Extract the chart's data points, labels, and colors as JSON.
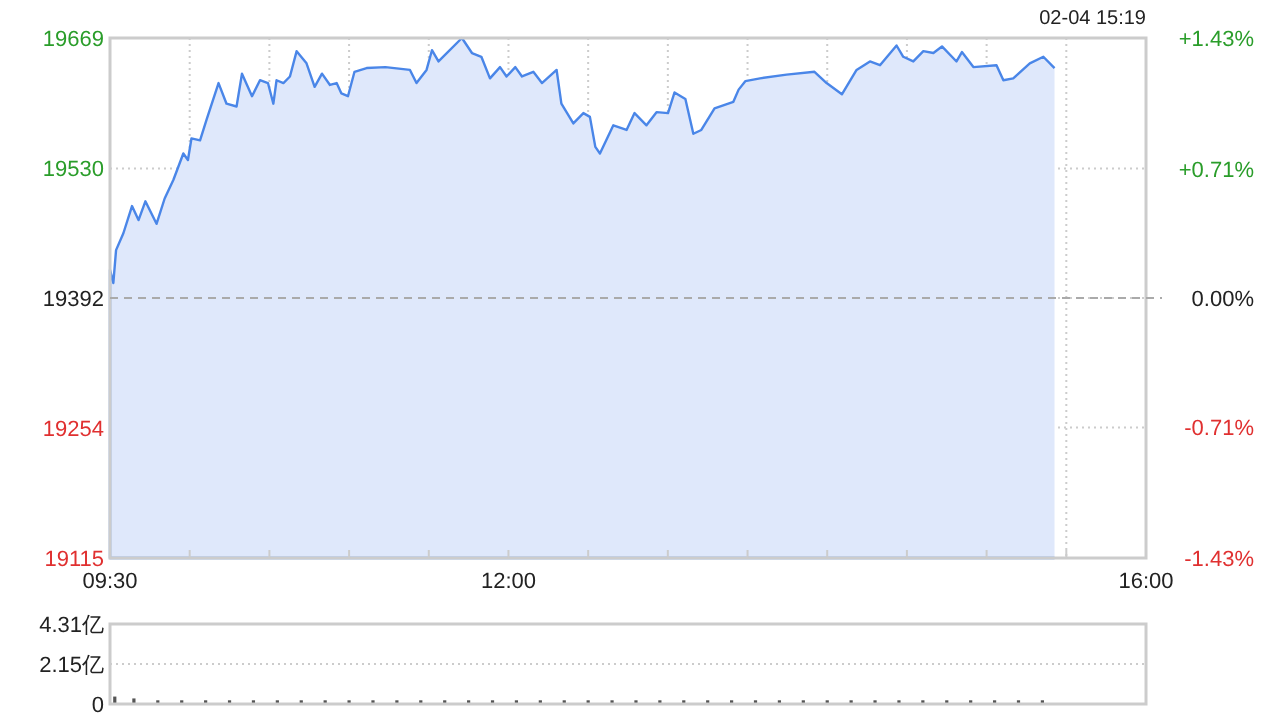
{
  "chart_data": [
    {
      "type": "area",
      "color": "#4a86e8",
      "x": [
        9.5,
        9.521,
        9.538,
        9.584,
        9.638,
        9.679,
        9.722,
        9.792,
        9.843,
        9.898,
        9.96,
        9.989,
        10.011,
        10.065,
        10.106,
        10.181,
        10.231,
        10.294,
        10.328,
        10.391,
        10.441,
        10.491,
        10.525,
        10.545,
        10.588,
        10.629,
        10.671,
        10.733,
        10.784,
        10.83,
        10.88,
        10.922,
        10.952,
        10.993,
        11.034,
        11.11,
        11.228,
        11.382,
        11.423,
        11.486,
        11.52,
        11.561,
        11.708,
        11.771,
        11.83,
        11.884,
        11.947,
        11.988,
        12.043,
        12.085,
        12.156,
        12.21,
        12.302,
        12.332,
        12.407,
        12.47,
        12.511,
        12.545,
        12.574,
        12.658,
        12.741,
        12.791,
        12.866,
        12.929,
        13.001,
        13.042,
        13.11,
        13.16,
        13.21,
        13.293,
        13.411,
        13.444,
        13.486,
        13.578,
        13.745,
        13.92,
        13.996,
        14.092,
        14.184,
        14.268,
        14.331,
        14.435,
        14.477,
        14.54,
        14.603,
        14.666,
        14.72,
        14.811,
        14.845,
        14.917,
        15.062,
        15.105,
        15.167,
        15.271,
        15.356,
        15.426
      ],
      "values": [
        19422,
        19408,
        19443,
        19461,
        19490,
        19475,
        19495,
        19471,
        19498,
        19518,
        19546,
        19539,
        19562,
        19560,
        19582,
        19621,
        19599,
        19596,
        19631,
        19607,
        19624,
        19621,
        19599,
        19624,
        19621,
        19628,
        19655,
        19642,
        19617,
        19631,
        19619,
        19621,
        19610,
        19607,
        19633,
        19637,
        19638,
        19635,
        19621,
        19635,
        19656,
        19644,
        19669,
        19653,
        19649,
        19626,
        19638,
        19628,
        19638,
        19628,
        19633,
        19621,
        19635,
        19599,
        19578,
        19589,
        19585,
        19553,
        19546,
        19576,
        19571,
        19589,
        19576,
        19590,
        19589,
        19611,
        19604,
        19567,
        19571,
        19594,
        19601,
        19614,
        19623,
        19626,
        19630,
        19633,
        19621,
        19609,
        19635,
        19644,
        19640,
        19661,
        19649,
        19644,
        19655,
        19653,
        19660,
        19644,
        19654,
        19638,
        19640,
        19624,
        19626,
        19642,
        19649,
        19637
      ],
      "xlim": [
        9.5,
        16
      ],
      "xticks": [
        {
          "value": 9.5,
          "label": "09:30"
        },
        {
          "value": 10,
          "label": null
        },
        {
          "value": 10.5,
          "label": null
        },
        {
          "value": 11,
          "label": null
        },
        {
          "value": 11.5,
          "label": null
        },
        {
          "value": 12,
          "label": "12:00"
        },
        {
          "value": 12.5,
          "label": null
        },
        {
          "value": 13,
          "label": null
        },
        {
          "value": 13.5,
          "label": null
        },
        {
          "value": 14,
          "label": null
        },
        {
          "value": 14.5,
          "label": null
        },
        {
          "value": 15,
          "label": null
        },
        {
          "value": 15.5,
          "label": null
        },
        {
          "value": 16,
          "label": "16:00"
        }
      ],
      "ylim": [
        19115,
        19669
      ],
      "yticks": [
        19115,
        19254,
        19392,
        19530,
        19669
      ],
      "y2lim": [
        -1.43,
        1.43
      ],
      "y2ticks": [
        {
          "value": -1.43,
          "label": "-1.43%"
        },
        {
          "value": -0.71,
          "label": "-0.71%"
        },
        {
          "value": 0,
          "label": "0.00%"
        },
        {
          "value": 0.71,
          "label": "+0.71%"
        },
        {
          "value": 1.43,
          "label": "+1.43%"
        }
      ],
      "ref_lines": [
        {
          "axis": "y",
          "value": 19392,
          "line_style": "dashed",
          "color": "#aaaaaa"
        }
      ],
      "grid": true,
      "annotations": [
        "02-04 15:19"
      ]
    },
    {
      "type": "bar",
      "color": "#555555",
      "x": [
        9.53,
        9.65,
        9.8,
        9.95,
        10.1,
        10.25,
        10.4,
        10.55,
        10.7,
        10.85,
        11.0,
        11.15,
        11.3,
        11.45,
        11.6,
        11.75,
        11.9,
        12.05,
        12.2,
        12.35,
        12.5,
        12.65,
        12.8,
        12.95,
        13.1,
        13.25,
        13.4,
        13.55,
        13.7,
        13.85,
        14.0,
        14.15,
        14.3,
        14.45,
        14.6,
        14.75,
        14.9,
        15.05,
        15.2,
        15.35
      ],
      "values": [
        0.4,
        0.3,
        0.2,
        0.2,
        0.2,
        0.2,
        0.2,
        0.2,
        0.2,
        0.2,
        0.2,
        0.2,
        0.2,
        0.2,
        0.2,
        0.2,
        0.2,
        0.2,
        0.2,
        0.2,
        0.2,
        0.2,
        0.2,
        0.2,
        0.2,
        0.2,
        0.2,
        0.2,
        0.2,
        0.2,
        0.2,
        0.2,
        0.2,
        0.2,
        0.2,
        0.2,
        0.2,
        0.2,
        0.2,
        0.2
      ],
      "xlim": [
        9.5,
        16
      ],
      "ylim": [
        0,
        4.31
      ],
      "yticks": [
        0,
        {
          "value": 2.15,
          "label": "2.15亿"
        },
        {
          "value": 4.31,
          "label": "4.31亿"
        }
      ],
      "grid": "y",
      "tick_labels": "y"
    }
  ]
}
